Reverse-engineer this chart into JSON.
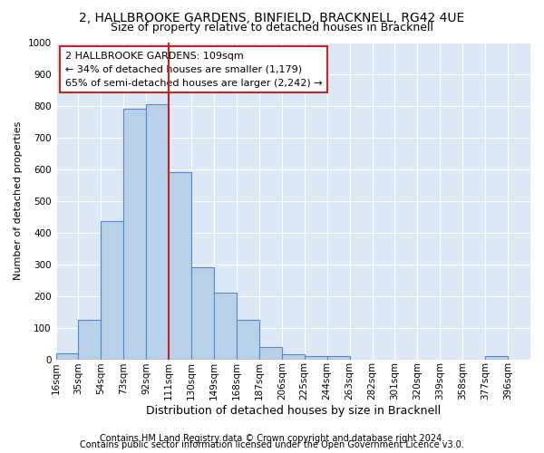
{
  "title1": "2, HALLBROOKE GARDENS, BINFIELD, BRACKNELL, RG42 4UE",
  "title2": "Size of property relative to detached houses in Bracknell",
  "xlabel": "Distribution of detached houses by size in Bracknell",
  "ylabel": "Number of detached properties",
  "footer1": "Contains HM Land Registry data © Crown copyright and database right 2024.",
  "footer2": "Contains public sector information licensed under the Open Government Licence v3.0.",
  "annotation_line1": "2 HALLBROOKE GARDENS: 109sqm",
  "annotation_line2": "← 34% of detached houses are smaller (1,179)",
  "annotation_line3": "65% of semi-detached houses are larger (2,242) →",
  "bar_left_edges": [
    16,
    35,
    54,
    73,
    92,
    111,
    130,
    149,
    168,
    187,
    206,
    225,
    244,
    263,
    282,
    301,
    320,
    339,
    358,
    377
  ],
  "bar_heights": [
    20,
    125,
    435,
    790,
    805,
    590,
    290,
    210,
    125,
    40,
    15,
    10,
    10,
    0,
    0,
    0,
    0,
    0,
    0,
    10
  ],
  "tick_labels": [
    "16sqm",
    "35sqm",
    "54sqm",
    "73sqm",
    "92sqm",
    "111sqm",
    "130sqm",
    "149sqm",
    "168sqm",
    "187sqm",
    "206sqm",
    "225sqm",
    "244sqm",
    "263sqm",
    "282sqm",
    "301sqm",
    "320sqm",
    "339sqm",
    "358sqm",
    "377sqm",
    "396sqm"
  ],
  "bar_color": "#b8d0e8",
  "bar_edge_color": "#5588cc",
  "red_line_x": 111,
  "background_color": "#ffffff",
  "plot_bg_color": "#dce8f5",
  "grid_color": "#ffffff",
  "ylim": [
    0,
    1000
  ],
  "yticks": [
    0,
    100,
    200,
    300,
    400,
    500,
    600,
    700,
    800,
    900,
    1000
  ],
  "title1_fontsize": 10,
  "title2_fontsize": 9,
  "xlabel_fontsize": 9,
  "ylabel_fontsize": 8,
  "tick_fontsize": 7.5,
  "footer_fontsize": 7,
  "annotation_fontsize": 8
}
